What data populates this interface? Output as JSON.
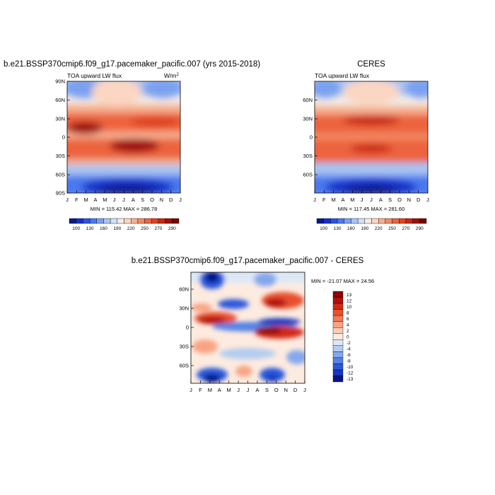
{
  "panels": [
    {
      "title": "b.e21.BSSP370cmip6.f09_g17.pacemaker_pacific.007 (yrs 2015-2018)",
      "subtitle_left": "TOA upward LW flux",
      "subtitle_right": "W/m",
      "subtitle_right_sup": "2",
      "stats": "MIN = 115.42 MAX = 286.78"
    },
    {
      "title": "CERES",
      "subtitle_left": "TOA upward LW flux",
      "stats": "MIN = 117.45 MAX = 281.60"
    },
    {
      "title": "b.e21.BSSP370cmip6.f09_g17.pacemaker_pacific.007 - CERES",
      "stats": "MIN = -21.07 MAX =  24.56"
    }
  ],
  "chart_data": [
    {
      "type": "heatmap",
      "title": "b.e21.BSSP370cmip6.f09_g17.pacemaker_pacific.007 (yrs 2015-2018)",
      "subtitle": "TOA upward LW flux",
      "units": "W/m2",
      "x_ticks": [
        "J",
        "F",
        "M",
        "A",
        "M",
        "J",
        "J",
        "A",
        "S",
        "O",
        "N",
        "D",
        "J"
      ],
      "y_ticks": [
        "90N",
        "60N",
        "30N",
        "0",
        "30S",
        "60S",
        "90S"
      ],
      "ylim": [
        -90,
        90
      ],
      "colorbar_labels": [
        "100",
        "130",
        "160",
        "190",
        "220",
        "250",
        "270",
        "290"
      ],
      "min": 115.42,
      "max": 286.78
    },
    {
      "type": "heatmap",
      "title": "CERES",
      "subtitle": "TOA upward LW flux",
      "x_ticks": [
        "J",
        "F",
        "M",
        "A",
        "M",
        "J",
        "J",
        "A",
        "S",
        "O",
        "N",
        "D",
        "J"
      ],
      "y_ticks": [
        "60N",
        "30N",
        "0",
        "30S",
        "60S"
      ],
      "colorbar_labels": [
        "100",
        "130",
        "160",
        "190",
        "220",
        "250",
        "270",
        "290"
      ],
      "min": 117.45,
      "max": 281.6
    },
    {
      "type": "heatmap",
      "title": "b.e21.BSSP370cmip6.f09_g17.pacemaker_pacific.007 - CERES",
      "x_ticks": [
        "J",
        "F",
        "M",
        "A",
        "M",
        "J",
        "J",
        "A",
        "S",
        "O",
        "N",
        "D",
        "J"
      ],
      "y_ticks": [
        "60N",
        "30N",
        "0",
        "30S",
        "60S"
      ],
      "colorbar_labels": [
        "13",
        "12",
        "10",
        "8",
        "6",
        "4",
        "2",
        "0",
        "-2",
        "-4",
        "-6",
        "-8",
        "-10",
        "-12",
        "-13"
      ],
      "min": -21.07,
      "max": 24.56
    }
  ],
  "colors": {
    "flux_scale": [
      "#0a1a8c",
      "#1530c8",
      "#2a55e6",
      "#4a78f0",
      "#7aa0f0",
      "#a8c4f2",
      "#d2e2f6",
      "#f2ece6",
      "#fbd6c2",
      "#f6b090",
      "#f28a64",
      "#ec643e",
      "#e04420",
      "#c82810",
      "#a01008",
      "#7a0000"
    ],
    "diff_scale": [
      "#8c0000",
      "#b01008",
      "#d02a14",
      "#e8502e",
      "#f27a58",
      "#f8a484",
      "#fcccb4",
      "#fdebe0",
      "#dce8f6",
      "#b4ccf0",
      "#84a8ec",
      "#5482e6",
      "#2a58dc",
      "#1436c0",
      "#06148c"
    ]
  }
}
